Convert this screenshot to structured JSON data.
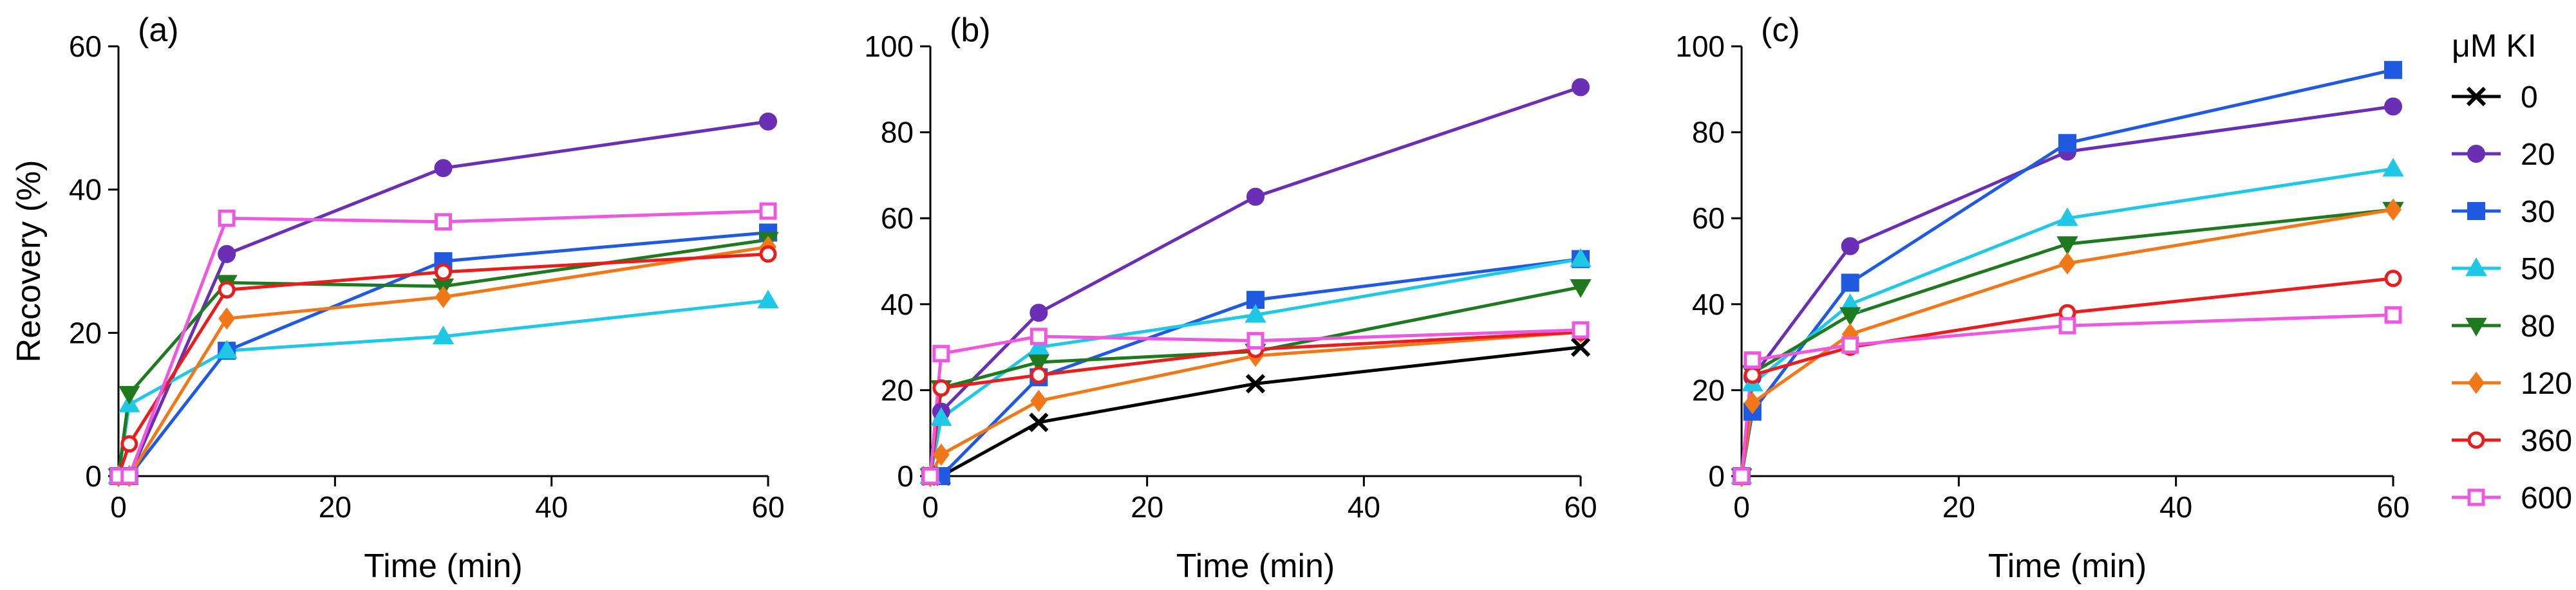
{
  "series_styles": [
    {
      "name": "0",
      "color": "#000000",
      "marker": "x"
    },
    {
      "name": "20",
      "color": "#6a2fb4",
      "marker": "circle"
    },
    {
      "name": "30",
      "color": "#1f5ae0",
      "marker": "square"
    },
    {
      "name": "50",
      "color": "#1ec8e6",
      "marker": "triangle-up"
    },
    {
      "name": "80",
      "color": "#1f7a1f",
      "marker": "triangle-down"
    },
    {
      "name": "120",
      "color": "#f07818",
      "marker": "diamond"
    },
    {
      "name": "360",
      "color": "#e81e1e",
      "marker": "circle-open"
    },
    {
      "name": "600",
      "color": "#ee58e0",
      "marker": "square-open"
    }
  ],
  "legend": {
    "title": "μM KI",
    "entries": [
      "0",
      "20",
      "30",
      "50",
      "80",
      "120",
      "360",
      "600"
    ]
  },
  "chart_data": [
    {
      "type": "line",
      "panel_label": "(a)",
      "xlabel": "Time (min)",
      "ylabel": "Recovery (%)",
      "xlim": [
        0,
        60
      ],
      "ylim": [
        0,
        60
      ],
      "xticks": [
        "0",
        "20",
        "40",
        "60"
      ],
      "yticks": [
        "0",
        "20",
        "40",
        "60"
      ],
      "x": [
        0,
        1,
        10,
        30,
        60
      ],
      "series": [
        {
          "name": "20",
          "values": [
            0,
            0,
            31,
            43,
            49.5
          ]
        },
        {
          "name": "30",
          "values": [
            0,
            0,
            17.5,
            30,
            34
          ]
        },
        {
          "name": "50",
          "values": [
            0,
            10,
            17.5,
            19.5,
            24.5
          ]
        },
        {
          "name": "80",
          "values": [
            0,
            11.5,
            27,
            26.5,
            33
          ]
        },
        {
          "name": "120",
          "values": [
            0,
            0,
            22,
            25,
            32
          ]
        },
        {
          "name": "360",
          "values": [
            0,
            4.5,
            26,
            28.5,
            31
          ]
        },
        {
          "name": "600",
          "values": [
            0,
            0,
            36,
            35.5,
            37
          ]
        }
      ]
    },
    {
      "type": "line",
      "panel_label": "(b)",
      "xlabel": "Time (min)",
      "ylabel": "",
      "xlim": [
        0,
        60
      ],
      "ylim": [
        0,
        100
      ],
      "xticks": [
        "0",
        "20",
        "40",
        "60"
      ],
      "yticks": [
        "0",
        "20",
        "40",
        "60",
        "80",
        "100"
      ],
      "x": [
        0,
        1,
        10,
        30,
        60
      ],
      "series": [
        {
          "name": "0",
          "values": [
            0,
            0,
            12.5,
            21.5,
            30
          ]
        },
        {
          "name": "20",
          "values": [
            0,
            15,
            38,
            65,
            90.5
          ]
        },
        {
          "name": "30",
          "values": [
            0,
            0,
            23,
            41,
            50.5
          ]
        },
        {
          "name": "50",
          "values": [
            0,
            13.5,
            30,
            37.5,
            50.5
          ]
        },
        {
          "name": "80",
          "values": [
            0,
            20.5,
            26.5,
            29,
            44
          ]
        },
        {
          "name": "120",
          "values": [
            0,
            5,
            17.5,
            28,
            33.5
          ]
        },
        {
          "name": "360",
          "values": [
            0,
            20.5,
            23.5,
            29.5,
            33.5
          ]
        },
        {
          "name": "600",
          "values": [
            0,
            28.5,
            32.5,
            31.5,
            34
          ]
        }
      ]
    },
    {
      "type": "line",
      "panel_label": "(c)",
      "xlabel": "Time (min)",
      "ylabel": "",
      "xlim": [
        0,
        60
      ],
      "ylim": [
        0,
        100
      ],
      "xticks": [
        "0",
        "20",
        "40",
        "60"
      ],
      "yticks": [
        "0",
        "20",
        "40",
        "60",
        "80",
        "100"
      ],
      "x": [
        0,
        1,
        10,
        30,
        60
      ],
      "series": [
        {
          "name": "20",
          "values": [
            0,
            23,
            53.5,
            75.5,
            86
          ]
        },
        {
          "name": "30",
          "values": [
            0,
            15,
            45,
            77.5,
            94.5
          ]
        },
        {
          "name": "50",
          "values": [
            0,
            21.5,
            40,
            60,
            71.5
          ]
        },
        {
          "name": "80",
          "values": [
            0,
            24,
            37.5,
            54,
            62
          ]
        },
        {
          "name": "120",
          "values": [
            0,
            17,
            33,
            49.5,
            62
          ]
        },
        {
          "name": "360",
          "values": [
            0,
            23.5,
            30,
            38,
            46
          ]
        },
        {
          "name": "600",
          "values": [
            0,
            27,
            30.5,
            35,
            37.5
          ]
        }
      ]
    }
  ]
}
